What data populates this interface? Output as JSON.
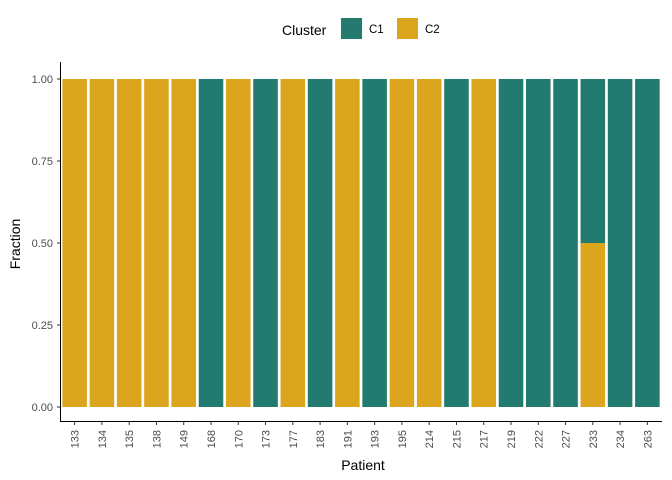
{
  "chart_data": {
    "type": "bar",
    "stacked": true,
    "xlabel": "Patient",
    "ylabel": "Fraction",
    "ylim": [
      0,
      1
    ],
    "yticks": [
      "0.00",
      "0.25",
      "0.50",
      "0.75",
      "1.00"
    ],
    "grid": false,
    "legend": {
      "title": "Cluster",
      "position": "top"
    },
    "categories": [
      "133",
      "134",
      "135",
      "138",
      "149",
      "168",
      "170",
      "173",
      "177",
      "183",
      "191",
      "193",
      "195",
      "214",
      "215",
      "217",
      "219",
      "222",
      "227",
      "233",
      "234",
      "263"
    ],
    "series": [
      {
        "name": "C1",
        "color": "#237A6E",
        "values": [
          0,
          0,
          0,
          0,
          0,
          1,
          0,
          1,
          0,
          1,
          0,
          1,
          0,
          0,
          1,
          0,
          1,
          1,
          1,
          0.5,
          1,
          1
        ]
      },
      {
        "name": "C2",
        "color": "#DBA51E",
        "values": [
          1,
          1,
          1,
          1,
          1,
          0,
          1,
          0,
          1,
          0,
          1,
          0,
          1,
          1,
          0,
          1,
          0,
          0,
          0,
          0.5,
          0,
          0
        ]
      }
    ]
  }
}
